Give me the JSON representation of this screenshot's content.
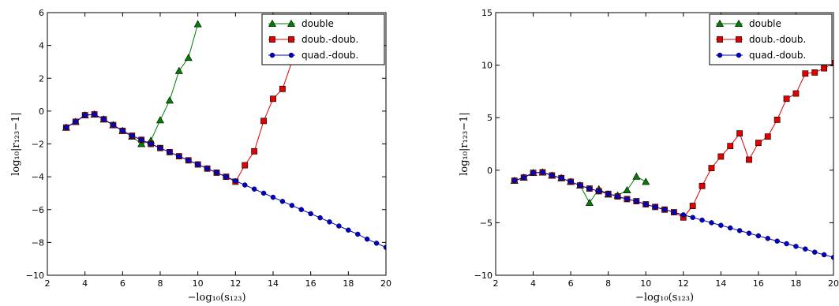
{
  "chart_data": [
    {
      "type": "line",
      "xlabel": "−log₁₀(s₁₂₃)",
      "ylabel": "log₁₀|r₁₂₃−1|",
      "xlim": [
        2,
        20
      ],
      "ylim": [
        -10,
        6
      ],
      "xticks": [
        2,
        4,
        6,
        8,
        10,
        12,
        14,
        16,
        18,
        20
      ],
      "yticks": [
        -10,
        -8,
        -6,
        -4,
        -2,
        0,
        2,
        4,
        6
      ],
      "grid": false,
      "legend_position": "top-right",
      "series": [
        {
          "name": "double",
          "color": "#007f00",
          "marker": "triangle",
          "x": [
            3.0,
            3.5,
            4.0,
            4.5,
            5.0,
            5.5,
            6.0,
            6.5,
            7.0,
            7.5,
            8.0,
            8.5,
            9.0,
            9.5,
            10.0
          ],
          "y": [
            -1.0,
            -0.65,
            -0.25,
            -0.2,
            -0.5,
            -0.85,
            -1.2,
            -1.55,
            -2.0,
            -1.8,
            -0.55,
            0.65,
            2.45,
            3.25,
            5.3
          ]
        },
        {
          "name": "doub.-doub.",
          "color": "#e00000",
          "marker": "square",
          "x": [
            3.0,
            3.5,
            4.0,
            4.5,
            5.0,
            5.5,
            6.0,
            6.5,
            7.0,
            7.5,
            8.0,
            8.5,
            9.0,
            9.5,
            10.0,
            10.5,
            11.0,
            11.5,
            12.0,
            12.5,
            13.0,
            13.5,
            14.0,
            14.5,
            15.0
          ],
          "y": [
            -1.0,
            -0.65,
            -0.25,
            -0.2,
            -0.5,
            -0.85,
            -1.2,
            -1.5,
            -1.75,
            -2.0,
            -2.25,
            -2.5,
            -2.75,
            -3.0,
            -3.25,
            -3.5,
            -3.75,
            -4.0,
            -4.3,
            -3.3,
            -2.45,
            -0.6,
            0.75,
            1.35,
            3.0
          ]
        },
        {
          "name": "quad.-doub.",
          "color": "#0000cc",
          "marker": "circle",
          "x": [
            3.0,
            3.5,
            4.0,
            4.5,
            5.0,
            5.5,
            6.0,
            6.5,
            7.0,
            7.5,
            8.0,
            8.5,
            9.0,
            9.5,
            10.0,
            10.5,
            11.0,
            11.5,
            12.0,
            12.5,
            13.0,
            13.5,
            14.0,
            14.5,
            15.0,
            15.5,
            16.0,
            16.5,
            17.0,
            17.5,
            18.0,
            18.5,
            19.0,
            19.5,
            20.0
          ],
          "y": [
            -1.0,
            -0.65,
            -0.25,
            -0.2,
            -0.5,
            -0.85,
            -1.2,
            -1.5,
            -1.75,
            -2.0,
            -2.25,
            -2.5,
            -2.75,
            -3.0,
            -3.25,
            -3.5,
            -3.75,
            -4.0,
            -4.25,
            -4.5,
            -4.75,
            -5.0,
            -5.25,
            -5.5,
            -5.75,
            -6.0,
            -6.25,
            -6.5,
            -6.75,
            -7.0,
            -7.25,
            -7.5,
            -7.8,
            -8.05,
            -8.3
          ]
        }
      ]
    },
    {
      "type": "line",
      "xlabel": "−log₁₀(s₁₂₃)",
      "ylabel": "log₁₀|r₁₂₃−1|",
      "xlim": [
        2,
        20
      ],
      "ylim": [
        -10,
        15
      ],
      "xticks": [
        2,
        4,
        6,
        8,
        10,
        12,
        14,
        16,
        18,
        20
      ],
      "yticks": [
        -10,
        -5,
        0,
        5,
        10,
        15
      ],
      "grid": false,
      "legend_position": "top-right",
      "series": [
        {
          "name": "double",
          "color": "#007f00",
          "marker": "triangle",
          "x": [
            3.0,
            3.5,
            4.0,
            4.5,
            5.0,
            5.5,
            6.0,
            6.5,
            7.0,
            7.5,
            8.0,
            8.5,
            9.0,
            9.5,
            10.0
          ],
          "y": [
            -1.0,
            -0.7,
            -0.25,
            -0.2,
            -0.5,
            -0.75,
            -1.1,
            -1.45,
            -3.1,
            -1.8,
            -2.3,
            -2.4,
            -1.9,
            -0.6,
            -1.1
          ]
        },
        {
          "name": "doub.-doub.",
          "color": "#e00000",
          "marker": "square",
          "x": [
            3.0,
            3.5,
            4.0,
            4.5,
            5.0,
            5.5,
            6.0,
            6.5,
            7.0,
            7.5,
            8.0,
            8.5,
            9.0,
            9.5,
            10.0,
            10.5,
            11.0,
            11.5,
            12.0,
            12.5,
            13.0,
            13.5,
            14.0,
            14.5,
            15.0,
            15.5,
            16.0,
            16.5,
            17.0,
            17.5,
            18.0,
            18.5,
            19.0,
            19.5,
            20.0
          ],
          "y": [
            -1.0,
            -0.7,
            -0.25,
            -0.2,
            -0.5,
            -0.75,
            -1.1,
            -1.45,
            -1.75,
            -2.0,
            -2.25,
            -2.5,
            -2.75,
            -2.95,
            -3.25,
            -3.5,
            -3.75,
            -4.0,
            -4.5,
            -3.4,
            -1.5,
            0.2,
            1.3,
            2.3,
            3.5,
            1.0,
            2.6,
            3.2,
            4.8,
            6.8,
            7.3,
            9.2,
            9.3,
            9.7,
            10.2
          ]
        },
        {
          "name": "quad.-doub.",
          "color": "#0000cc",
          "marker": "circle",
          "x": [
            3.0,
            3.5,
            4.0,
            4.5,
            5.0,
            5.5,
            6.0,
            6.5,
            7.0,
            7.5,
            8.0,
            8.5,
            9.0,
            9.5,
            10.0,
            10.5,
            11.0,
            11.5,
            12.0,
            12.5,
            13.0,
            13.5,
            14.0,
            14.5,
            15.0,
            15.5,
            16.0,
            16.5,
            17.0,
            17.5,
            18.0,
            18.5,
            19.0,
            19.5,
            20.0
          ],
          "y": [
            -1.0,
            -0.7,
            -0.25,
            -0.2,
            -0.5,
            -0.75,
            -1.1,
            -1.45,
            -1.75,
            -2.0,
            -2.25,
            -2.5,
            -2.75,
            -2.95,
            -3.25,
            -3.5,
            -3.75,
            -4.0,
            -4.25,
            -4.5,
            -4.75,
            -5.0,
            -5.25,
            -5.5,
            -5.75,
            -6.0,
            -6.25,
            -6.5,
            -6.75,
            -7.0,
            -7.25,
            -7.5,
            -7.8,
            -8.05,
            -8.3
          ]
        }
      ]
    }
  ]
}
